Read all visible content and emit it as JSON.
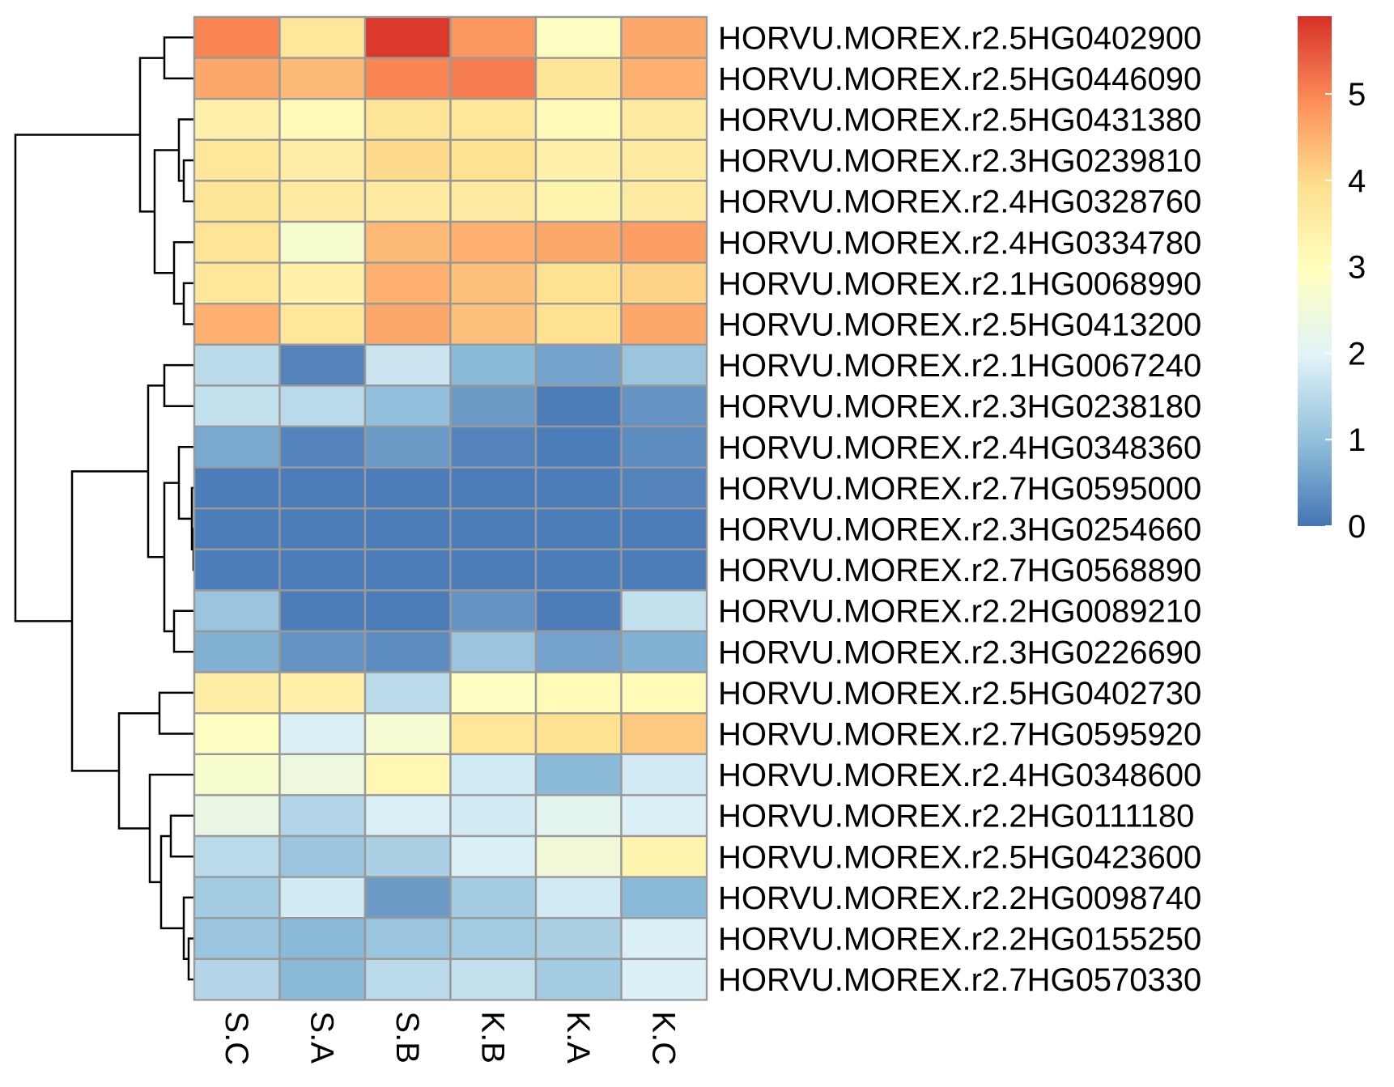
{
  "chart_data": {
    "type": "heatmap",
    "title": "",
    "xlabel": "",
    "ylabel": "",
    "columns": [
      "S.C",
      "S.A",
      "S.B",
      "K.B",
      "K.A",
      "K.C"
    ],
    "rows": [
      "HORVU.MOREX.r2.5HG0402900",
      "HORVU.MOREX.r2.5HG0446090",
      "HORVU.MOREX.r2.5HG0431380",
      "HORVU.MOREX.r2.3HG0239810",
      "HORVU.MOREX.r2.4HG0328760",
      "HORVU.MOREX.r2.4HG0334780",
      "HORVU.MOREX.r2.1HG0068990",
      "HORVU.MOREX.r2.5HG0413200",
      "HORVU.MOREX.r2.1HG0067240",
      "HORVU.MOREX.r2.3HG0238180",
      "HORVU.MOREX.r2.4HG0348360",
      "HORVU.MOREX.r2.7HG0595000",
      "HORVU.MOREX.r2.3HG0254660",
      "HORVU.MOREX.r2.7HG0568890",
      "HORVU.MOREX.r2.2HG0089210",
      "HORVU.MOREX.r2.3HG0226690",
      "HORVU.MOREX.r2.5HG0402730",
      "HORVU.MOREX.r2.7HG0595920",
      "HORVU.MOREX.r2.4HG0348600",
      "HORVU.MOREX.r2.2HG0111180",
      "HORVU.MOREX.r2.5HG0423600",
      "HORVU.MOREX.r2.2HG0098740",
      "HORVU.MOREX.r2.2HG0155250",
      "HORVU.MOREX.r2.7HG0570330"
    ],
    "values": [
      [
        5.0,
        3.7,
        5.8,
        4.8,
        2.9,
        4.6
      ],
      [
        4.6,
        4.4,
        5.0,
        5.1,
        3.8,
        4.5
      ],
      [
        3.4,
        3.1,
        3.8,
        3.7,
        3.1,
        3.6
      ],
      [
        3.7,
        3.5,
        4.0,
        3.9,
        3.4,
        3.6
      ],
      [
        3.8,
        3.6,
        3.6,
        3.6,
        3.3,
        3.6
      ],
      [
        3.8,
        2.7,
        4.4,
        4.5,
        4.6,
        4.7
      ],
      [
        3.7,
        3.4,
        4.5,
        4.3,
        3.9,
        4.1
      ],
      [
        4.5,
        3.7,
        4.6,
        4.3,
        3.9,
        4.6
      ],
      [
        1.5,
        0.2,
        1.7,
        0.9,
        0.6,
        1.1
      ],
      [
        1.6,
        1.5,
        1.0,
        0.5,
        0.1,
        0.4
      ],
      [
        0.7,
        0.2,
        0.5,
        0.2,
        0.1,
        0.3
      ],
      [
        0.1,
        0.1,
        0.1,
        0.1,
        0.1,
        0.2
      ],
      [
        0.1,
        0.1,
        0.1,
        0.1,
        0.1,
        0.1
      ],
      [
        0.1,
        0.1,
        0.1,
        0.1,
        0.1,
        0.1
      ],
      [
        1.1,
        0.1,
        0.1,
        0.4,
        0.1,
        1.6
      ],
      [
        0.8,
        0.4,
        0.3,
        1.1,
        0.6,
        0.8
      ],
      [
        3.5,
        3.4,
        1.5,
        2.9,
        3.1,
        3.1
      ],
      [
        2.9,
        1.9,
        2.6,
        3.7,
        3.9,
        4.2
      ],
      [
        2.7,
        2.4,
        3.2,
        1.8,
        0.9,
        1.8
      ],
      [
        2.3,
        1.4,
        1.9,
        1.8,
        2.1,
        1.9
      ],
      [
        1.5,
        1.1,
        1.3,
        1.9,
        2.5,
        3.3
      ],
      [
        1.2,
        1.8,
        0.5,
        1.2,
        1.8,
        0.9
      ],
      [
        1.1,
        0.9,
        1.1,
        1.2,
        1.3,
        1.9
      ],
      [
        1.4,
        0.9,
        1.5,
        1.6,
        1.2,
        1.9
      ]
    ],
    "color_scale": {
      "min": 0,
      "max": 5.9,
      "stops": [
        {
          "value": 0,
          "color": "#4575b4"
        },
        {
          "value": 0.98,
          "color": "#91bfdb"
        },
        {
          "value": 1.97,
          "color": "#e0f3f8"
        },
        {
          "value": 2.95,
          "color": "#ffffbf"
        },
        {
          "value": 3.93,
          "color": "#fee090"
        },
        {
          "value": 4.92,
          "color": "#fc8d59"
        },
        {
          "value": 5.9,
          "color": "#d73027"
        }
      ],
      "ticks": [
        0,
        1,
        2,
        3,
        4,
        5
      ],
      "tick_labels": [
        "0",
        "1",
        "2",
        "3",
        "4",
        "5"
      ]
    },
    "cell_border_color": "#999999",
    "row_dendrogram": true,
    "legend_placement": "top-right"
  }
}
